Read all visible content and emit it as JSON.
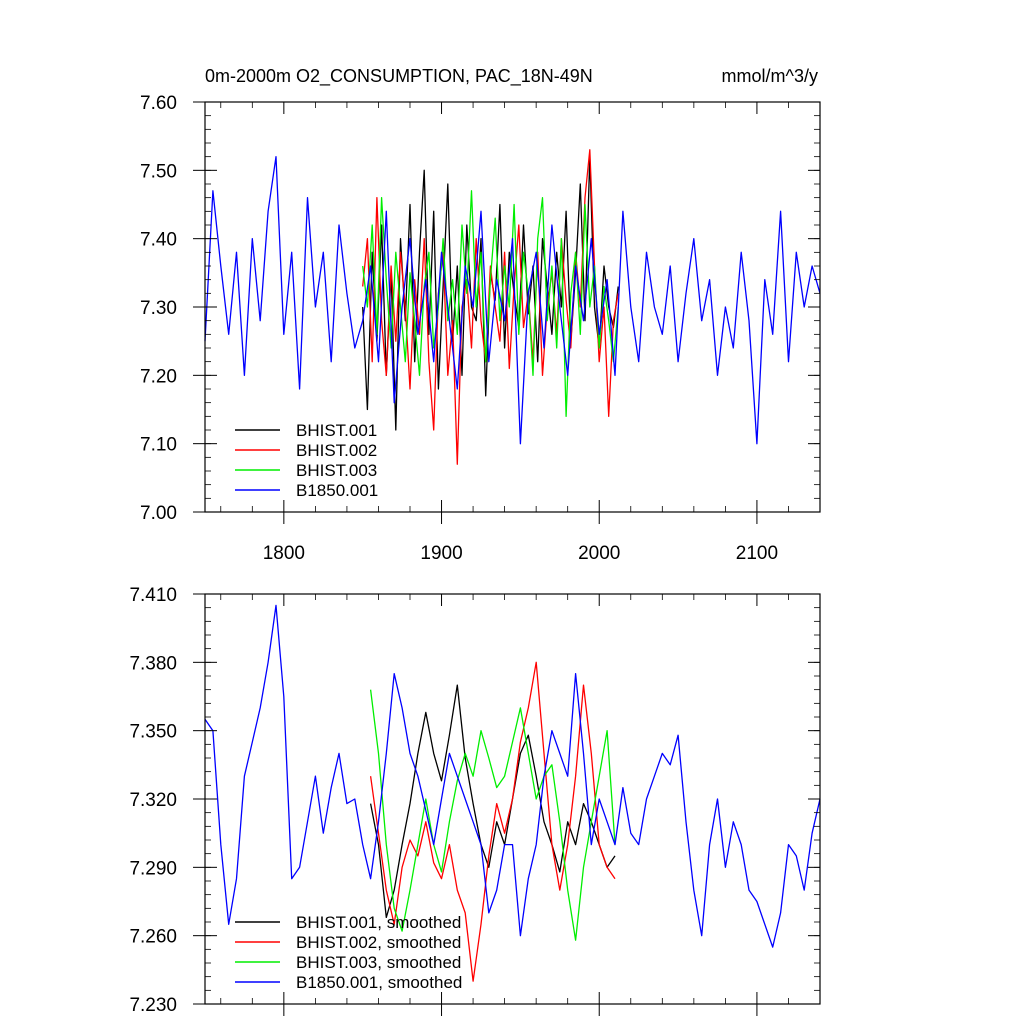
{
  "chart_data": [
    {
      "type": "line",
      "title": "0m-2000m O2_CONSUMPTION, PAC_18N-49N",
      "units": "mmol/m^3/y",
      "xlim": [
        1750,
        2140
      ],
      "ylim": [
        7.0,
        7.6
      ],
      "xticks": [
        1800,
        1900,
        2000,
        2100
      ],
      "xtick_labels": [
        "1800",
        "1900",
        "2000",
        "2100"
      ],
      "yticks": [
        7.0,
        7.1,
        7.2,
        7.3,
        7.4,
        7.5,
        7.6
      ],
      "ytick_labels": [
        "7.00",
        "7.10",
        "7.20",
        "7.30",
        "7.40",
        "7.50",
        "7.60"
      ],
      "legend_placement": "bottom-left",
      "series": [
        {
          "name": "BHIST.001",
          "color": "#000000",
          "x": [
            1850,
            1853,
            1856,
            1859,
            1862,
            1865,
            1868,
            1871,
            1874,
            1877,
            1880,
            1883,
            1886,
            1889,
            1892,
            1895,
            1898,
            1901,
            1904,
            1907,
            1910,
            1913,
            1916,
            1919,
            1922,
            1925,
            1928,
            1931,
            1934,
            1937,
            1940,
            1943,
            1946,
            1949,
            1952,
            1955,
            1958,
            1961,
            1964,
            1967,
            1970,
            1973,
            1976,
            1979,
            1982,
            1985,
            1988,
            1991,
            1994,
            1997,
            2000,
            2003,
            2006,
            2009,
            2012
          ],
          "y": [
            7.3,
            7.15,
            7.38,
            7.25,
            7.42,
            7.2,
            7.35,
            7.12,
            7.4,
            7.28,
            7.45,
            7.22,
            7.38,
            7.5,
            7.26,
            7.44,
            7.18,
            7.33,
            7.48,
            7.25,
            7.36,
            7.2,
            7.42,
            7.3,
            7.28,
            7.4,
            7.17,
            7.35,
            7.31,
            7.45,
            7.24,
            7.38,
            7.32,
            7.27,
            7.42,
            7.29,
            7.36,
            7.22,
            7.4,
            7.33,
            7.26,
            7.38,
            7.3,
            7.44,
            7.25,
            7.35,
            7.48,
            7.28,
            7.52,
            7.3,
            7.24,
            7.36,
            7.3,
            7.27,
            7.33
          ]
        },
        {
          "name": "BHIST.002",
          "color": "#ff0000",
          "x": [
            1850,
            1853,
            1856,
            1859,
            1862,
            1865,
            1868,
            1871,
            1874,
            1877,
            1880,
            1883,
            1886,
            1889,
            1892,
            1895,
            1898,
            1901,
            1904,
            1907,
            1910,
            1913,
            1916,
            1919,
            1922,
            1925,
            1928,
            1931,
            1934,
            1937,
            1940,
            1943,
            1946,
            1949,
            1952,
            1955,
            1958,
            1961,
            1964,
            1967,
            1970,
            1973,
            1976,
            1979,
            1982,
            1985,
            1988,
            1991,
            1994,
            1997,
            2000,
            2003,
            2006,
            2009,
            2012
          ],
          "y": [
            7.33,
            7.4,
            7.22,
            7.46,
            7.28,
            7.2,
            7.36,
            7.25,
            7.38,
            7.3,
            7.18,
            7.34,
            7.26,
            7.4,
            7.22,
            7.12,
            7.32,
            7.38,
            7.2,
            7.28,
            7.07,
            7.3,
            7.34,
            7.24,
            7.4,
            7.28,
            7.22,
            7.36,
            7.3,
            7.25,
            7.38,
            7.21,
            7.33,
            7.42,
            7.27,
            7.32,
            7.22,
            7.38,
            7.2,
            7.3,
            7.35,
            7.26,
            7.4,
            7.31,
            7.24,
            7.38,
            7.3,
            7.46,
            7.53,
            7.36,
            7.22,
            7.3,
            7.14,
            7.28,
            7.32
          ]
        },
        {
          "name": "BHIST.003",
          "color": "#00ee00",
          "x": [
            1850,
            1853,
            1856,
            1859,
            1862,
            1865,
            1868,
            1871,
            1874,
            1877,
            1880,
            1883,
            1886,
            1889,
            1892,
            1895,
            1898,
            1901,
            1904,
            1907,
            1910,
            1913,
            1916,
            1919,
            1922,
            1925,
            1928,
            1931,
            1934,
            1937,
            1940,
            1943,
            1946,
            1949,
            1952,
            1955,
            1958,
            1961,
            1964,
            1967,
            1970,
            1973,
            1976,
            1979,
            1982,
            1985,
            1988,
            1991,
            1994,
            1997,
            2000,
            2003,
            2006,
            2009,
            2012
          ],
          "y": [
            7.36,
            7.3,
            7.42,
            7.26,
            7.46,
            7.34,
            7.24,
            7.38,
            7.3,
            7.22,
            7.35,
            7.28,
            7.2,
            7.33,
            7.38,
            7.24,
            7.3,
            7.4,
            7.28,
            7.34,
            7.26,
            7.42,
            7.32,
            7.47,
            7.3,
            7.38,
            7.22,
            7.34,
            7.43,
            7.28,
            7.36,
            7.3,
            7.45,
            7.26,
            7.38,
            7.32,
            7.2,
            7.4,
            7.46,
            7.28,
            7.36,
            7.24,
            7.4,
            7.14,
            7.32,
            7.38,
            7.26,
            7.45,
            7.3,
            7.36,
            7.24,
            7.33,
            7.28,
            7.22,
            7.3
          ]
        },
        {
          "name": "B1850.001",
          "color": "#0000ff",
          "x": [
            1750,
            1755,
            1760,
            1765,
            1770,
            1775,
            1780,
            1785,
            1790,
            1795,
            1800,
            1805,
            1810,
            1815,
            1820,
            1825,
            1830,
            1835,
            1840,
            1845,
            1850,
            1855,
            1860,
            1865,
            1870,
            1875,
            1880,
            1885,
            1890,
            1895,
            1900,
            1905,
            1910,
            1915,
            1920,
            1925,
            1930,
            1935,
            1940,
            1945,
            1950,
            1955,
            1960,
            1965,
            1970,
            1975,
            1980,
            1985,
            1990,
            1995,
            2000,
            2005,
            2010,
            2015,
            2020,
            2025,
            2030,
            2035,
            2040,
            2045,
            2050,
            2055,
            2060,
            2065,
            2070,
            2075,
            2080,
            2085,
            2090,
            2095,
            2100,
            2105,
            2110,
            2115,
            2120,
            2125,
            2130,
            2135,
            2140
          ],
          "y": [
            7.25,
            7.47,
            7.36,
            7.26,
            7.38,
            7.2,
            7.4,
            7.28,
            7.44,
            7.52,
            7.26,
            7.38,
            7.18,
            7.46,
            7.3,
            7.38,
            7.22,
            7.42,
            7.32,
            7.24,
            7.28,
            7.36,
            7.22,
            7.44,
            7.16,
            7.3,
            7.4,
            7.26,
            7.34,
            7.22,
            7.38,
            7.28,
            7.18,
            7.36,
            7.3,
            7.44,
            7.22,
            7.34,
            7.28,
            7.4,
            7.1,
            7.32,
            7.38,
            7.24,
            7.42,
            7.3,
            7.2,
            7.36,
            7.28,
            7.4,
            7.26,
            7.34,
            7.2,
            7.44,
            7.3,
            7.22,
            7.38,
            7.3,
            7.26,
            7.36,
            7.22,
            7.32,
            7.4,
            7.28,
            7.34,
            7.2,
            7.3,
            7.24,
            7.38,
            7.28,
            7.1,
            7.34,
            7.26,
            7.44,
            7.22,
            7.38,
            7.3,
            7.36,
            7.32
          ]
        }
      ]
    },
    {
      "type": "line",
      "xlim": [
        1750,
        2140
      ],
      "ylim": [
        7.23,
        7.41
      ],
      "xticks": [
        1800,
        1900,
        2000,
        2100
      ],
      "yticks": [
        7.23,
        7.26,
        7.29,
        7.32,
        7.35,
        7.38,
        7.41
      ],
      "ytick_labels": [
        "7.230",
        "7.260",
        "7.290",
        "7.320",
        "7.350",
        "7.380",
        "7.410"
      ],
      "legend_placement": "bottom-left",
      "series": [
        {
          "name": "BHIST.001, smoothed",
          "color": "#000000",
          "x": [
            1855,
            1860,
            1865,
            1870,
            1875,
            1880,
            1885,
            1890,
            1895,
            1900,
            1905,
            1910,
            1915,
            1920,
            1925,
            1930,
            1935,
            1940,
            1945,
            1950,
            1955,
            1960,
            1965,
            1970,
            1975,
            1980,
            1985,
            1990,
            1995,
            2000,
            2005,
            2010
          ],
          "y": [
            7.318,
            7.3,
            7.268,
            7.28,
            7.3,
            7.318,
            7.34,
            7.358,
            7.34,
            7.328,
            7.348,
            7.37,
            7.338,
            7.318,
            7.3,
            7.29,
            7.31,
            7.3,
            7.32,
            7.34,
            7.348,
            7.33,
            7.31,
            7.3,
            7.288,
            7.31,
            7.3,
            7.318,
            7.31,
            7.3,
            7.29,
            7.295
          ]
        },
        {
          "name": "BHIST.002, smoothed",
          "color": "#ff0000",
          "x": [
            1855,
            1860,
            1865,
            1870,
            1875,
            1880,
            1885,
            1890,
            1895,
            1900,
            1905,
            1910,
            1915,
            1920,
            1925,
            1930,
            1935,
            1940,
            1945,
            1950,
            1955,
            1960,
            1965,
            1970,
            1975,
            1980,
            1985,
            1990,
            1995,
            2000,
            2005,
            2010
          ],
          "y": [
            7.33,
            7.305,
            7.28,
            7.265,
            7.29,
            7.302,
            7.295,
            7.31,
            7.292,
            7.285,
            7.3,
            7.28,
            7.27,
            7.24,
            7.265,
            7.295,
            7.318,
            7.305,
            7.32,
            7.345,
            7.36,
            7.38,
            7.34,
            7.3,
            7.28,
            7.3,
            7.33,
            7.37,
            7.34,
            7.3,
            7.29,
            7.285
          ]
        },
        {
          "name": "BHIST.003, smoothed",
          "color": "#00ee00",
          "x": [
            1855,
            1860,
            1865,
            1870,
            1875,
            1880,
            1885,
            1890,
            1895,
            1900,
            1905,
            1910,
            1915,
            1920,
            1925,
            1930,
            1935,
            1940,
            1945,
            1950,
            1955,
            1960,
            1965,
            1970,
            1975,
            1980,
            1985,
            1990,
            1995,
            2000,
            2005,
            2010
          ],
          "y": [
            7.368,
            7.34,
            7.3,
            7.272,
            7.262,
            7.28,
            7.3,
            7.32,
            7.3,
            7.288,
            7.31,
            7.328,
            7.34,
            7.33,
            7.35,
            7.338,
            7.325,
            7.33,
            7.345,
            7.36,
            7.34,
            7.32,
            7.33,
            7.335,
            7.31,
            7.28,
            7.258,
            7.29,
            7.31,
            7.33,
            7.35,
            7.3
          ]
        },
        {
          "name": "B1850.001, smoothed",
          "color": "#0000ff",
          "x": [
            1750,
            1755,
            1760,
            1765,
            1770,
            1775,
            1780,
            1785,
            1790,
            1795,
            1800,
            1805,
            1810,
            1815,
            1820,
            1825,
            1830,
            1835,
            1840,
            1845,
            1850,
            1855,
            1860,
            1865,
            1870,
            1875,
            1880,
            1885,
            1890,
            1895,
            1900,
            1905,
            1910,
            1915,
            1920,
            1925,
            1930,
            1935,
            1940,
            1945,
            1950,
            1955,
            1960,
            1965,
            1970,
            1975,
            1980,
            1985,
            1990,
            1995,
            2000,
            2005,
            2010,
            2015,
            2020,
            2025,
            2030,
            2035,
            2040,
            2045,
            2050,
            2055,
            2060,
            2065,
            2070,
            2075,
            2080,
            2085,
            2090,
            2095,
            2100,
            2105,
            2110,
            2115,
            2120,
            2125,
            2130,
            2135,
            2140
          ],
          "y": [
            7.355,
            7.35,
            7.3,
            7.265,
            7.285,
            7.33,
            7.345,
            7.36,
            7.38,
            7.405,
            7.365,
            7.285,
            7.29,
            7.31,
            7.33,
            7.305,
            7.325,
            7.34,
            7.318,
            7.32,
            7.3,
            7.285,
            7.31,
            7.34,
            7.375,
            7.36,
            7.34,
            7.33,
            7.315,
            7.3,
            7.32,
            7.34,
            7.33,
            7.32,
            7.31,
            7.3,
            7.27,
            7.28,
            7.3,
            7.3,
            7.26,
            7.285,
            7.3,
            7.33,
            7.35,
            7.34,
            7.33,
            7.375,
            7.34,
            7.3,
            7.32,
            7.31,
            7.3,
            7.325,
            7.305,
            7.3,
            7.32,
            7.33,
            7.34,
            7.335,
            7.348,
            7.31,
            7.28,
            7.26,
            7.3,
            7.32,
            7.29,
            7.31,
            7.3,
            7.28,
            7.275,
            7.265,
            7.255,
            7.27,
            7.3,
            7.295,
            7.28,
            7.305,
            7.32
          ]
        }
      ]
    }
  ]
}
